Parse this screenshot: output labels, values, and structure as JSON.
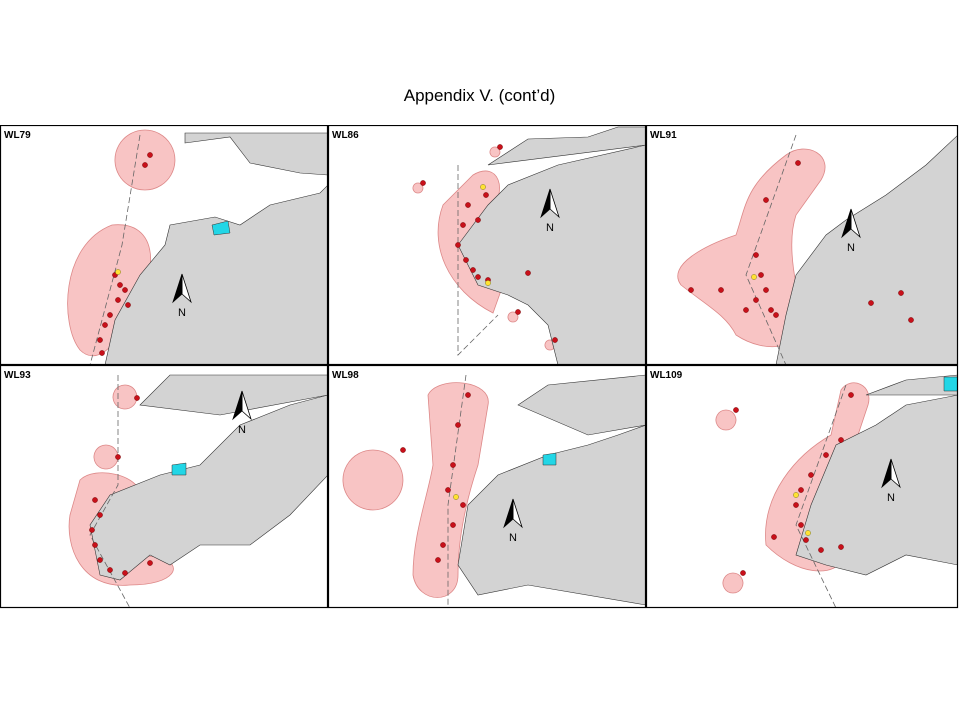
{
  "title": "Appendix V.  (cont’d)",
  "panels": [
    {
      "label": "WL79",
      "north": "N"
    },
    {
      "label": "WL86",
      "north": "N"
    },
    {
      "label": "WL91",
      "north": "N"
    },
    {
      "label": "WL93",
      "north": "N"
    },
    {
      "label": "WL98",
      "north": "N"
    },
    {
      "label": "WL109",
      "north": "N"
    }
  ]
}
